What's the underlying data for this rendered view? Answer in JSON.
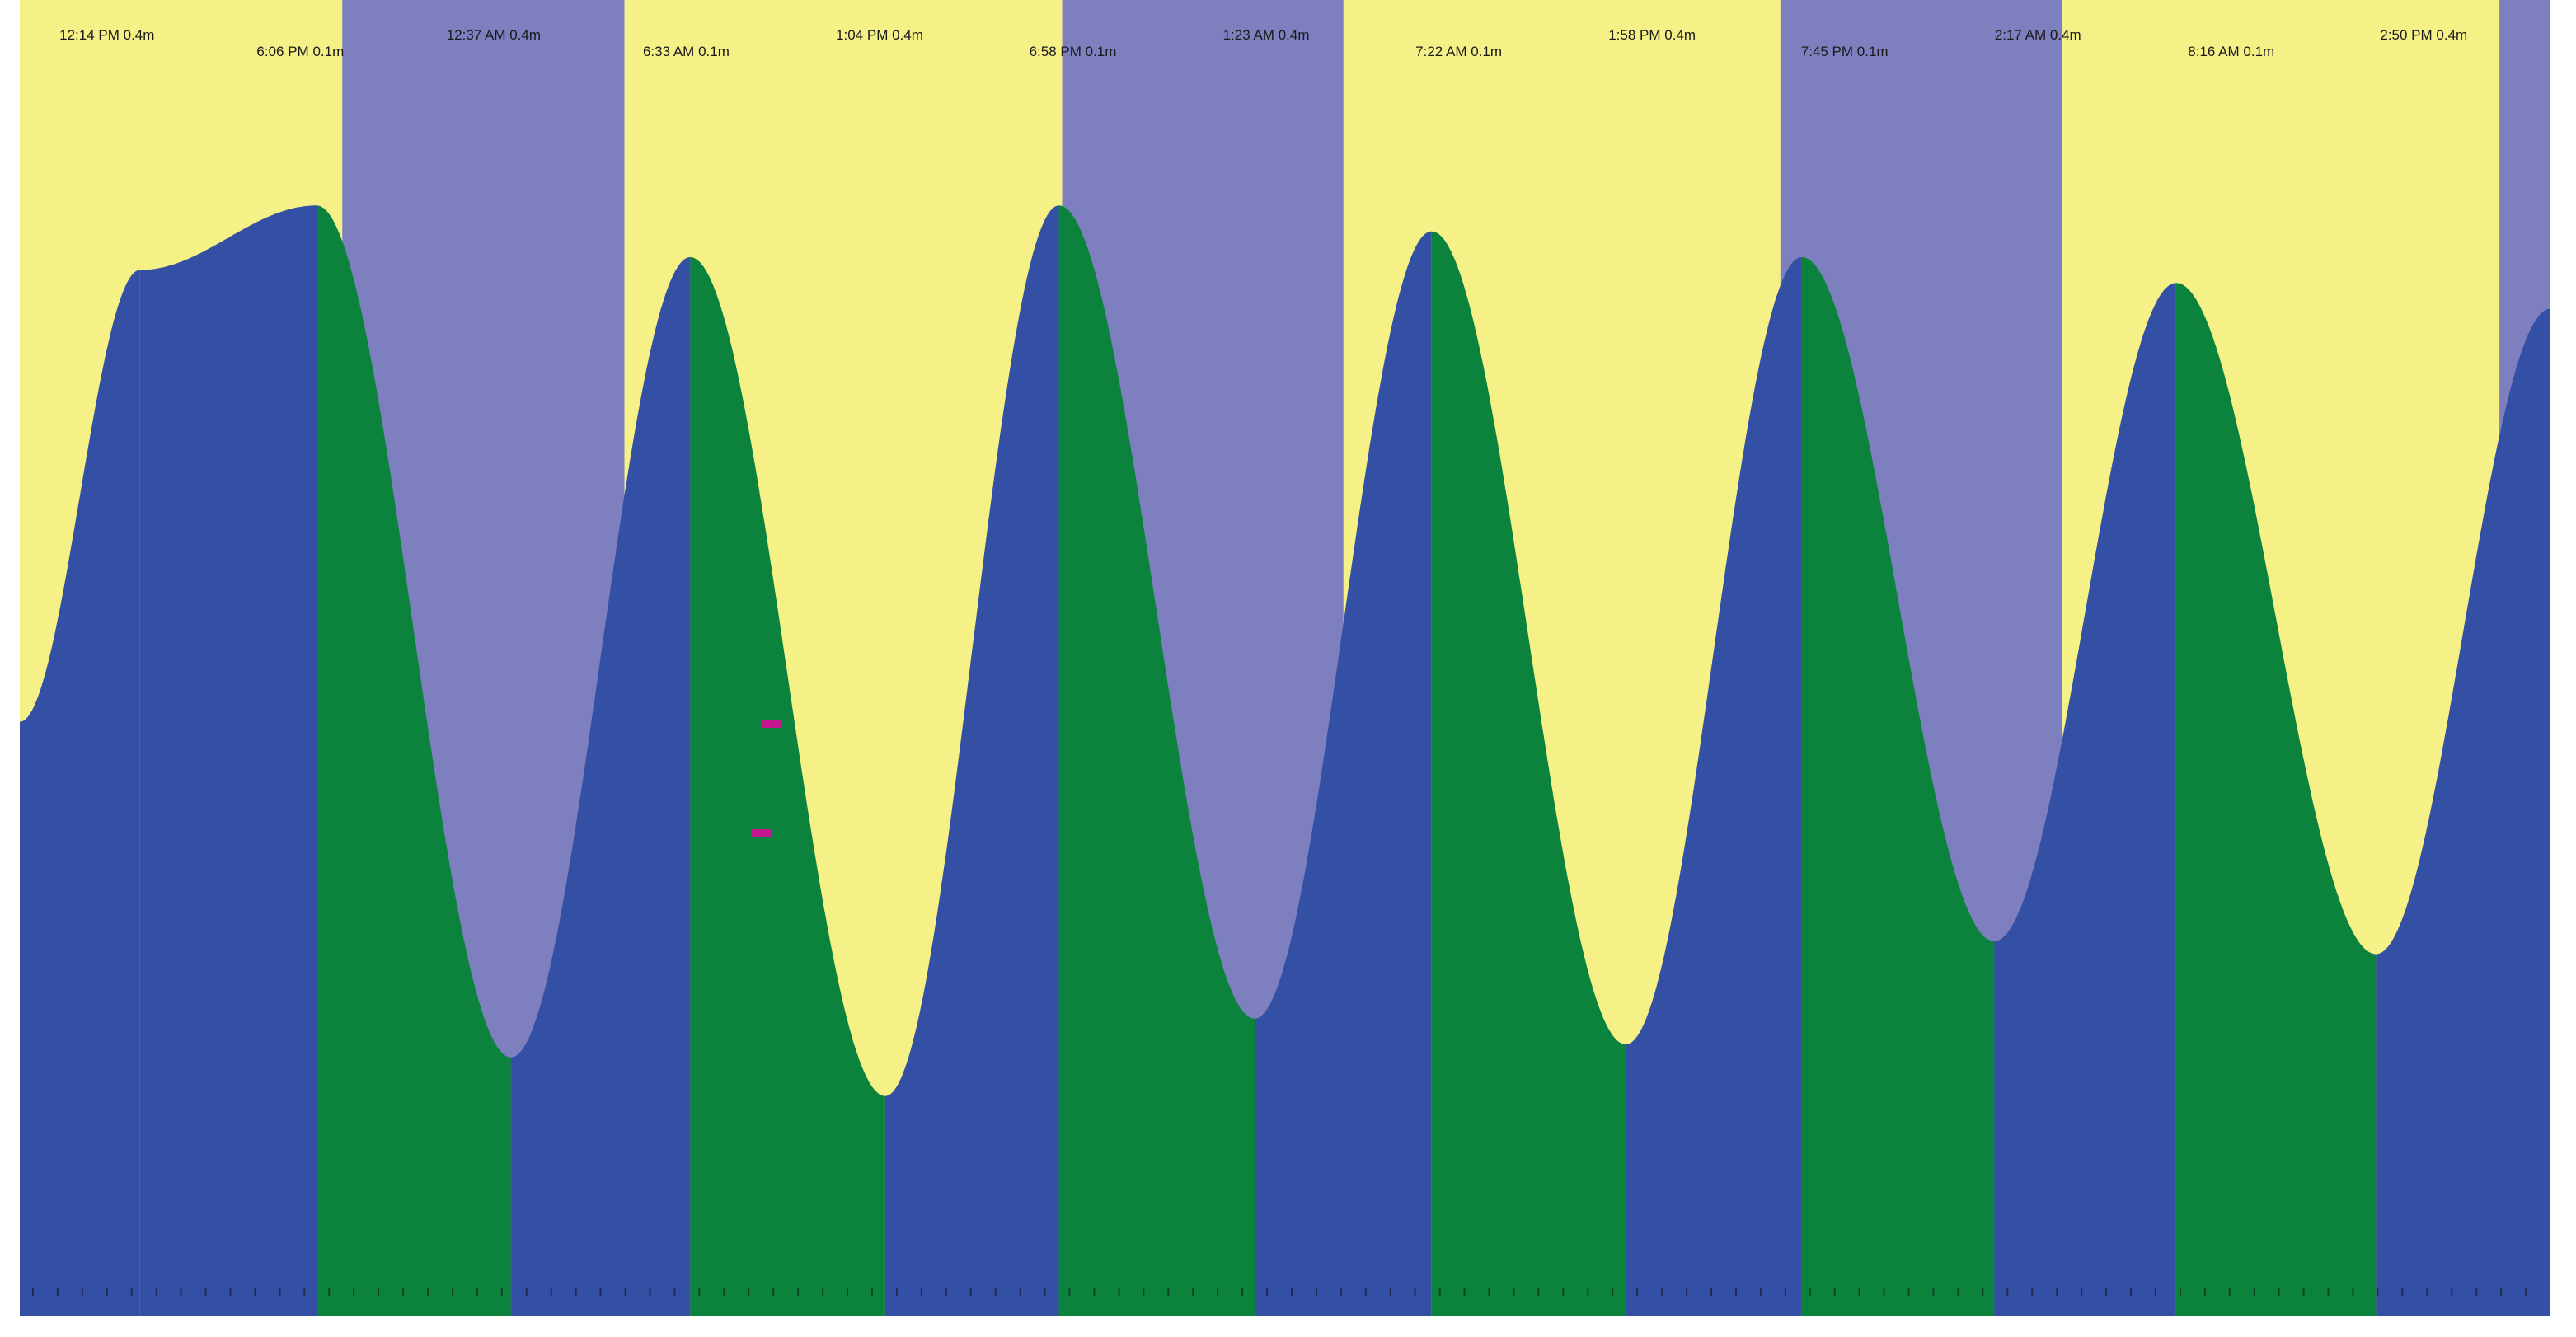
{
  "chart_data": {
    "type": "area",
    "title": "",
    "xlabel": "",
    "ylabel": "",
    "extremes": [
      {
        "label": "12:14 PM 0.4m",
        "kind": "high",
        "height_m": 0.4
      },
      {
        "label": "6:06 PM 0.1m",
        "kind": "low",
        "height_m": 0.1
      },
      {
        "label": "12:37 AM 0.4m",
        "kind": "high",
        "height_m": 0.4
      },
      {
        "label": "6:33 AM 0.1m",
        "kind": "low",
        "height_m": 0.1
      },
      {
        "label": "1:04 PM 0.4m",
        "kind": "high",
        "height_m": 0.4
      },
      {
        "label": "6:58 PM 0.1m",
        "kind": "low",
        "height_m": 0.1
      },
      {
        "label": "1:23 AM 0.4m",
        "kind": "high",
        "height_m": 0.4
      },
      {
        "label": "7:22 AM 0.1m",
        "kind": "low",
        "height_m": 0.1
      },
      {
        "label": "1:58 PM 0.4m",
        "kind": "high",
        "height_m": 0.4
      },
      {
        "label": "7:45 PM 0.1m",
        "kind": "low",
        "height_m": 0.1
      },
      {
        "label": "2:17 AM 0.4m",
        "kind": "high",
        "height_m": 0.4
      },
      {
        "label": "8:16 AM 0.1m",
        "kind": "low",
        "height_m": 0.1
      },
      {
        "label": "2:50 PM 0.4m",
        "kind": "high",
        "height_m": 0.4
      }
    ],
    "curve_levels": [
      0.46,
      0.81,
      0.86,
      0.2,
      0.82,
      0.17,
      0.86,
      0.23,
      0.84,
      0.21,
      0.82,
      0.29,
      0.8,
      0.28,
      0.78
    ],
    "day_night_bands": [
      "day",
      "night",
      "day",
      "night",
      "day",
      "night",
      "day",
      "night"
    ],
    "y_range_relative": [
      0,
      1
    ],
    "colors": {
      "day": "#f5f187",
      "night": "#7d7fbf",
      "rising": "#3450a4",
      "falling": "#0c833d",
      "marker": "#c2188f",
      "label": "#1a1a1a"
    }
  }
}
